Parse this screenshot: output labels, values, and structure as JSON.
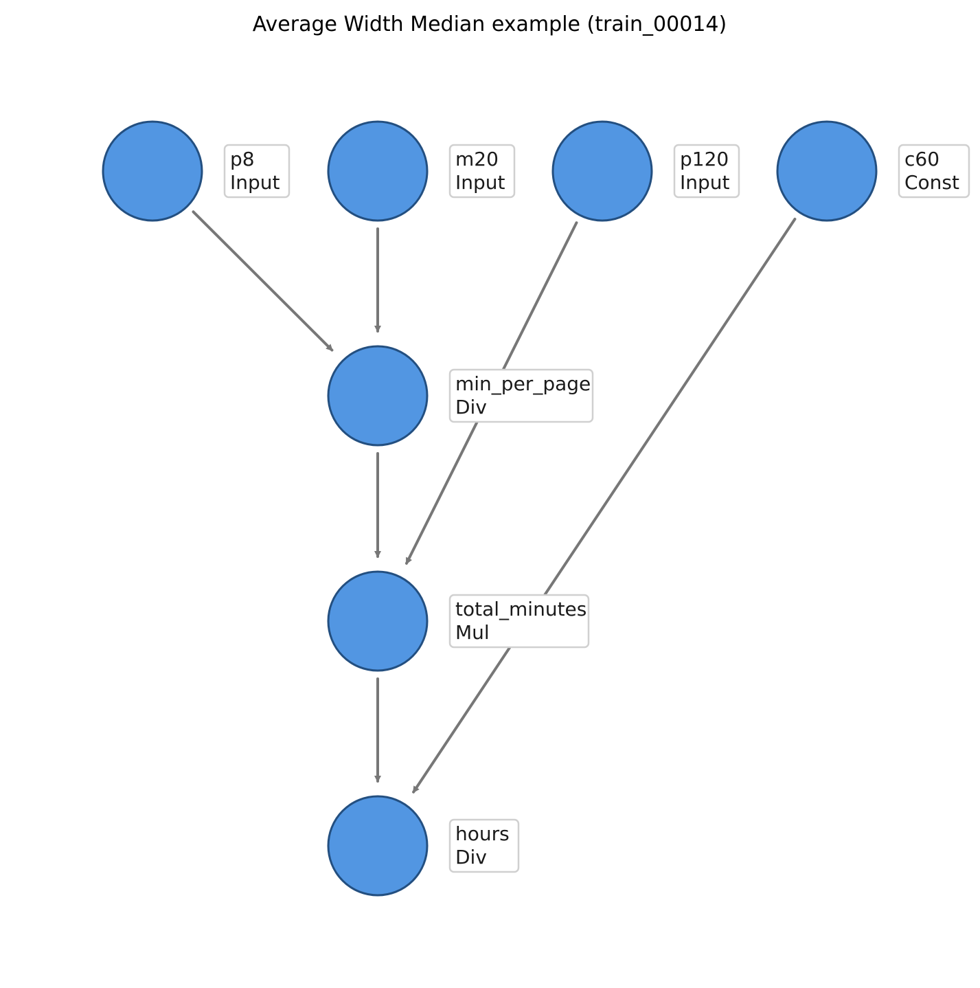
{
  "title": "Average Width Median example (train_00014)",
  "colors": {
    "node_fill": "#5296e2",
    "node_stroke": "#234f80",
    "edge": "#777777",
    "label_border": "#d0d0d0"
  },
  "nodes": [
    {
      "id": "p8",
      "name": "p8",
      "op": "Input"
    },
    {
      "id": "m20",
      "name": "m20",
      "op": "Input"
    },
    {
      "id": "p120",
      "name": "p120",
      "op": "Input"
    },
    {
      "id": "c60",
      "name": "c60",
      "op": "Const"
    },
    {
      "id": "min_per_page",
      "name": "min_per_page",
      "op": "Div"
    },
    {
      "id": "total_minutes",
      "name": "total_minutes",
      "op": "Mul"
    },
    {
      "id": "hours",
      "name": "hours",
      "op": "Div"
    }
  ],
  "edges": [
    {
      "from": "p8",
      "to": "min_per_page"
    },
    {
      "from": "m20",
      "to": "min_per_page"
    },
    {
      "from": "p120",
      "to": "total_minutes"
    },
    {
      "from": "c60",
      "to": "hours"
    },
    {
      "from": "min_per_page",
      "to": "total_minutes"
    },
    {
      "from": "total_minutes",
      "to": "hours"
    }
  ]
}
